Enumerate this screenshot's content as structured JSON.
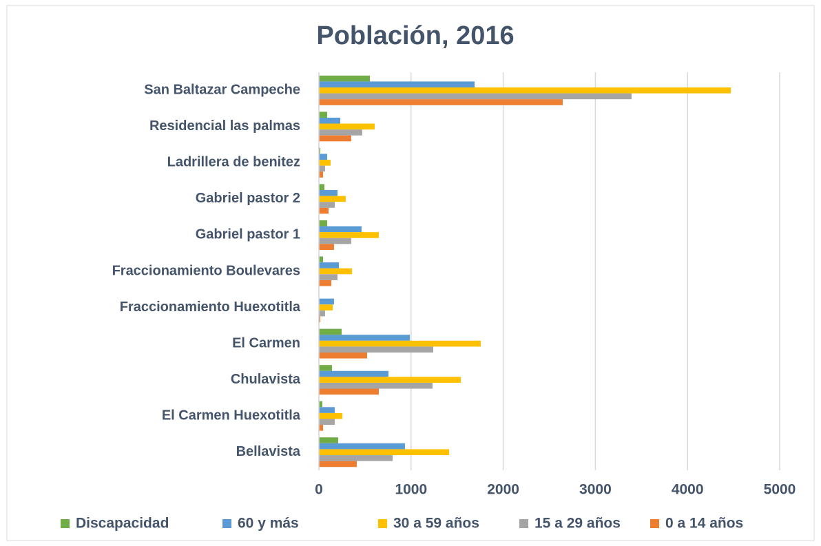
{
  "chart_data": {
    "type": "bar",
    "orientation": "horizontal",
    "title": "Población, 2016",
    "categories": [
      "San Baltazar Campeche",
      "Residencial las palmas",
      "Ladrillera de benitez",
      "Gabriel pastor 2",
      "Gabriel pastor 1",
      "Fraccionamiento Boulevares",
      "Fraccionamiento Huexotitla",
      "El Carmen",
      "Chulavista",
      "El Carmen Huexotitla",
      "Bellavista"
    ],
    "series": [
      {
        "name": "Discapacidad",
        "color": "#70ad47",
        "values": [
          553,
          90,
          15,
          60,
          90,
          45,
          0,
          247,
          142,
          37,
          209
        ]
      },
      {
        "name": "60 y más",
        "color": "#5b9bd5",
        "values": [
          1690,
          232,
          90,
          202,
          463,
          217,
          164,
          987,
          755,
          172,
          934
        ]
      },
      {
        "name": "30 a 59 años",
        "color": "#ffc000",
        "values": [
          4470,
          605,
          127,
          291,
          650,
          359,
          150,
          1756,
          1540,
          254,
          1413
        ]
      },
      {
        "name": "15 a 29 años",
        "color": "#a5a5a5",
        "values": [
          3393,
          470,
          67,
          172,
          351,
          202,
          67,
          1241,
          1233,
          172,
          800
        ]
      },
      {
        "name": "0 a 14 años",
        "color": "#ed7d31",
        "values": [
          2646,
          351,
          45,
          105,
          164,
          135,
          15,
          523,
          650,
          45,
          411
        ]
      }
    ],
    "xlim": [
      0,
      5000
    ],
    "xticks": [
      0,
      1000,
      2000,
      3000,
      4000,
      5000
    ],
    "grid": true,
    "legend": "bottom"
  }
}
